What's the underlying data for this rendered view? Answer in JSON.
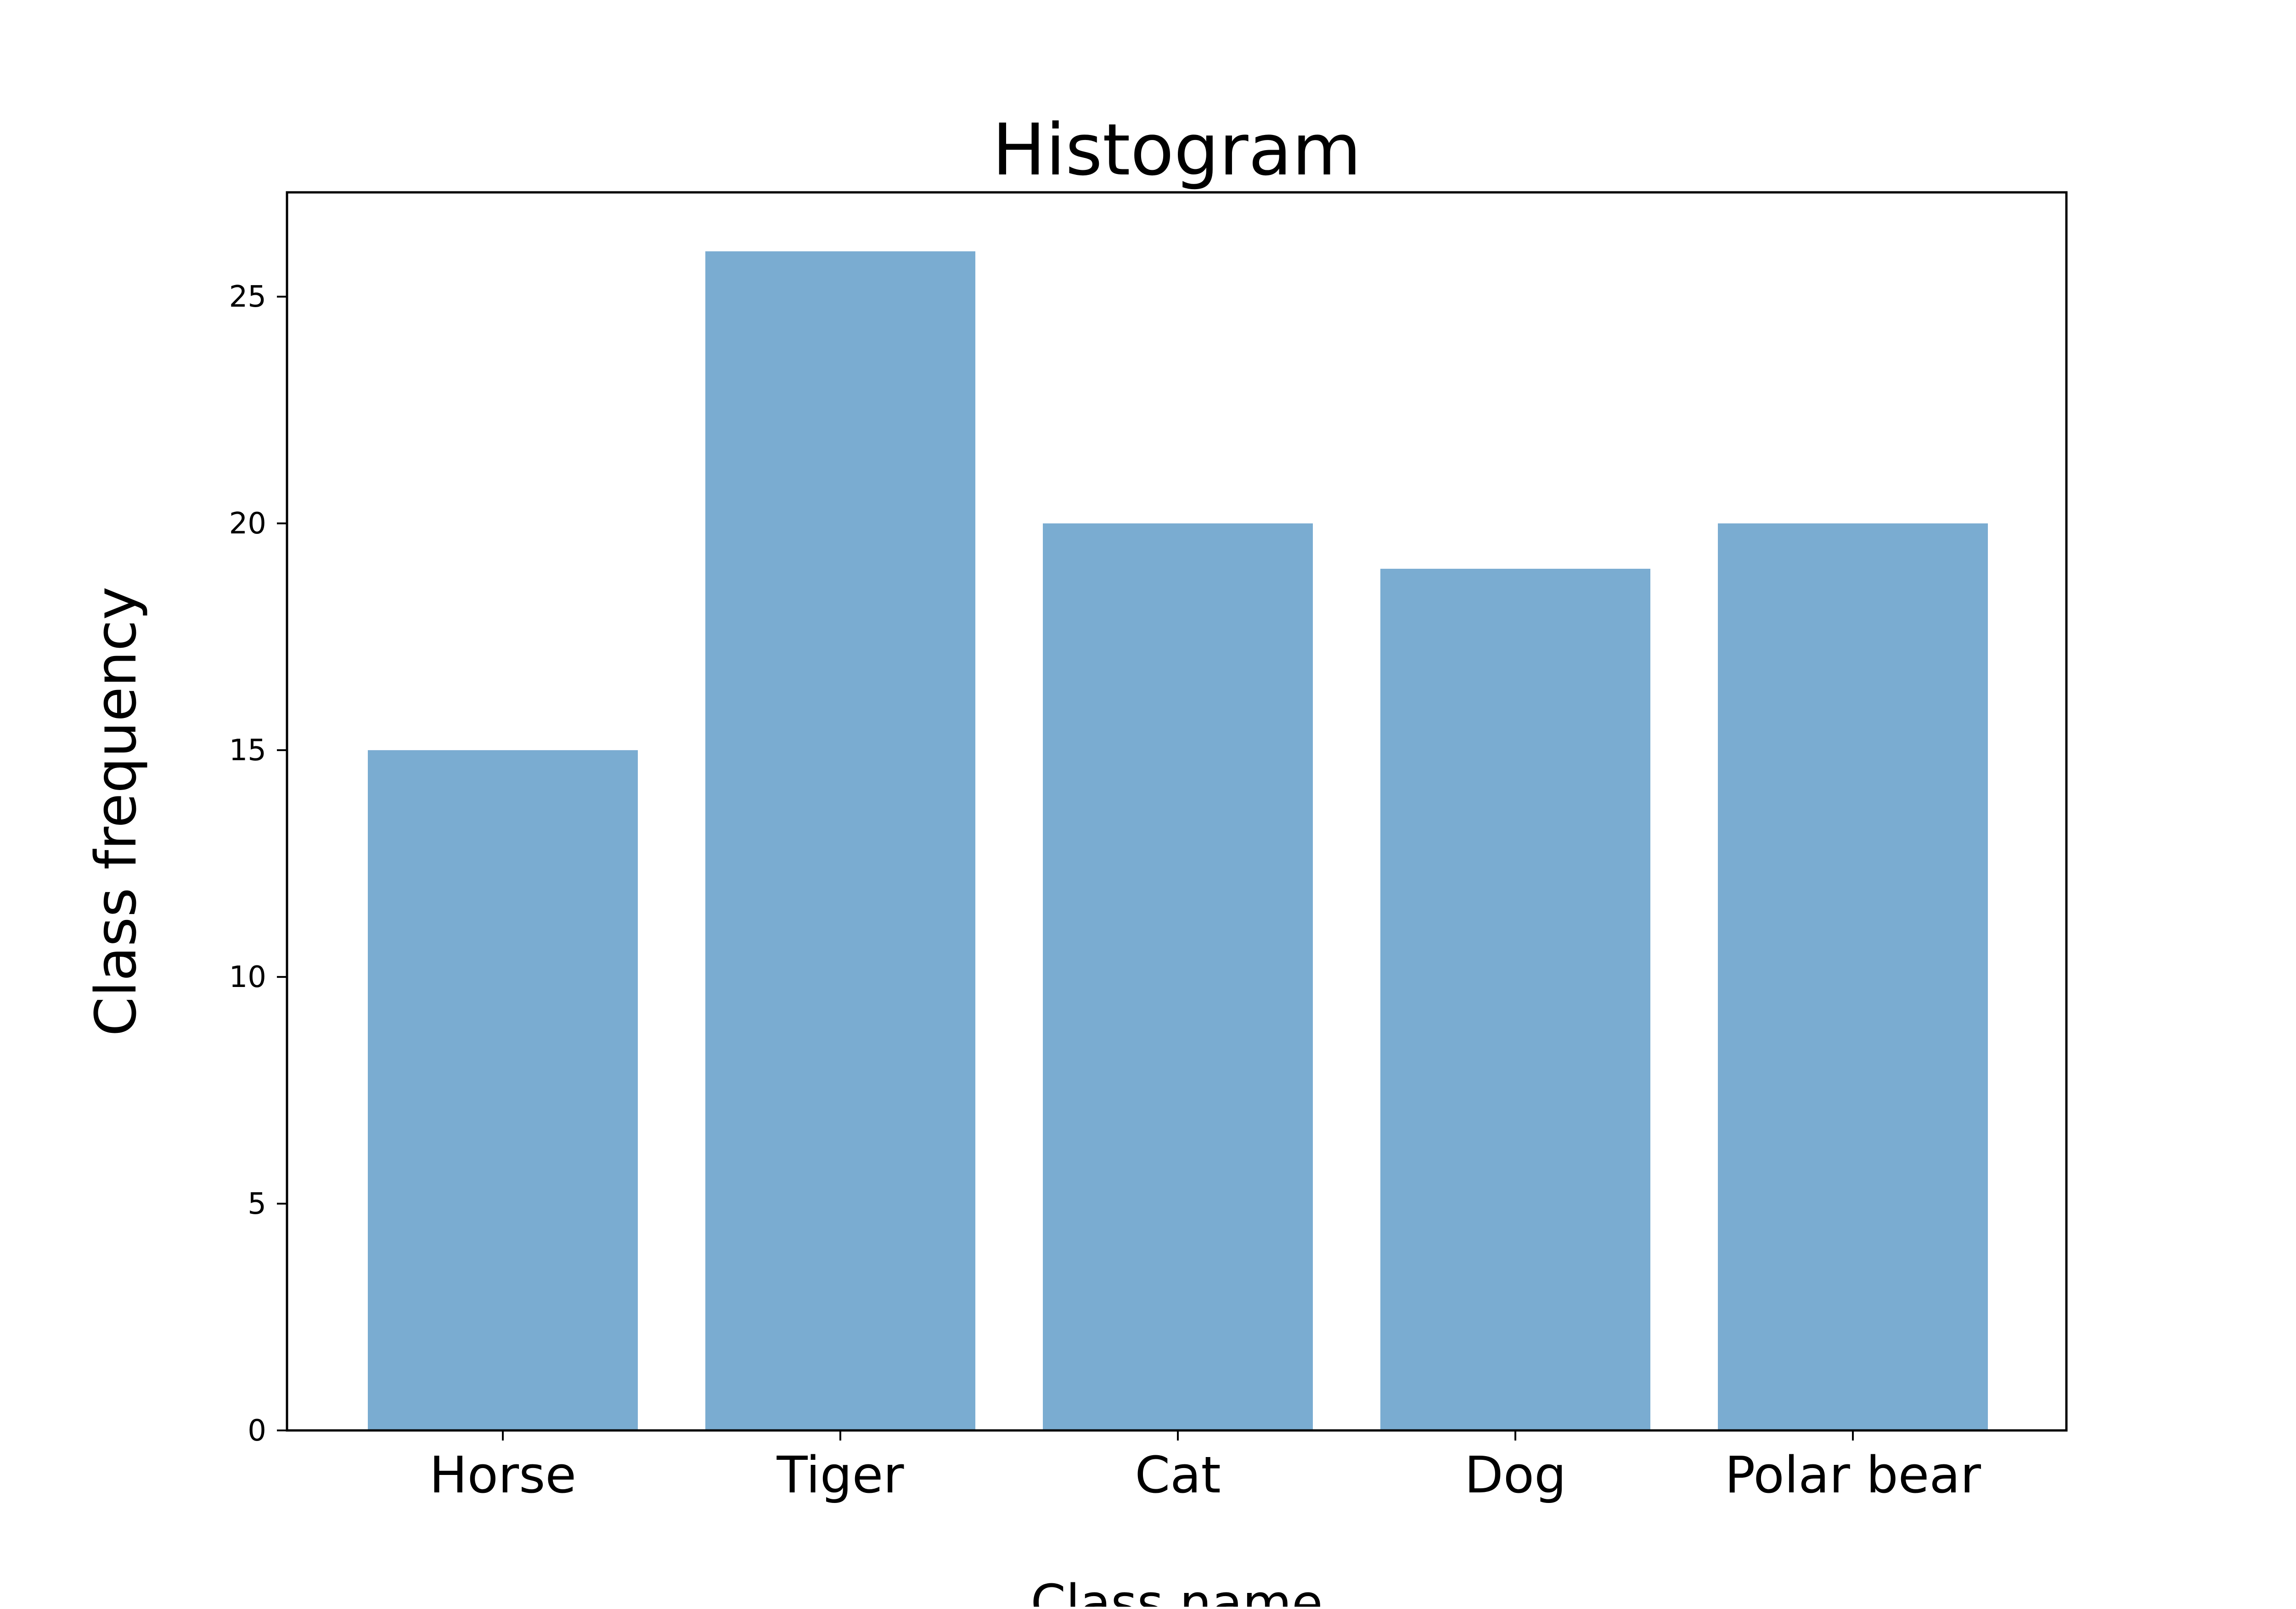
{
  "chart_data": {
    "type": "bar",
    "title": "Histogram",
    "xlabel": "Class name",
    "ylabel": "Class frequency",
    "categories": [
      "Horse",
      "Tiger",
      "Cat",
      "Dog",
      "Polar bear"
    ],
    "values": [
      15,
      26,
      20,
      19,
      20
    ],
    "ylim": [
      0,
      27.3
    ],
    "yticks": [
      0,
      5,
      10,
      15,
      20,
      25
    ],
    "grid": false,
    "bar_color": "#7aacd1"
  }
}
